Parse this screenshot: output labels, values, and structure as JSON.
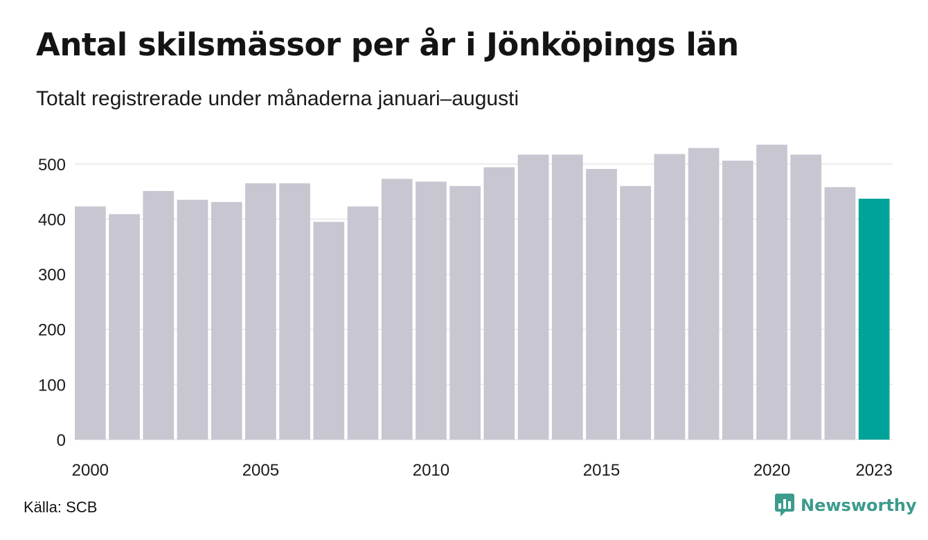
{
  "header": {
    "title": "Antal skilsmässor per år i Jönköpings län",
    "subtitle": "Totalt registrerade under månaderna januari–augusti"
  },
  "footer": {
    "source": "Källa: SCB",
    "brand": "Newsworthy"
  },
  "colors": {
    "bar": "#c8c6d0",
    "highlight": "#00a39a",
    "grid": "#e6e6e6",
    "brand": "#3c9b8c"
  },
  "chart_data": {
    "type": "bar",
    "categories": [
      "2000",
      "2001",
      "2002",
      "2003",
      "2004",
      "2005",
      "2006",
      "2007",
      "2008",
      "2009",
      "2010",
      "2011",
      "2012",
      "2013",
      "2014",
      "2015",
      "2016",
      "2017",
      "2018",
      "2019",
      "2020",
      "2021",
      "2022",
      "2023"
    ],
    "values": [
      423,
      409,
      451,
      435,
      431,
      465,
      465,
      395,
      423,
      473,
      468,
      460,
      494,
      517,
      517,
      491,
      460,
      518,
      529,
      506,
      535,
      517,
      458,
      437
    ],
    "highlight_category": "2023",
    "x_tick_labels": [
      "2000",
      "2005",
      "2010",
      "2015",
      "2020",
      "2023"
    ],
    "y_ticks": [
      0,
      100,
      200,
      300,
      400,
      500
    ],
    "ylim": [
      0,
      540
    ],
    "grid": true,
    "legend": "none"
  }
}
